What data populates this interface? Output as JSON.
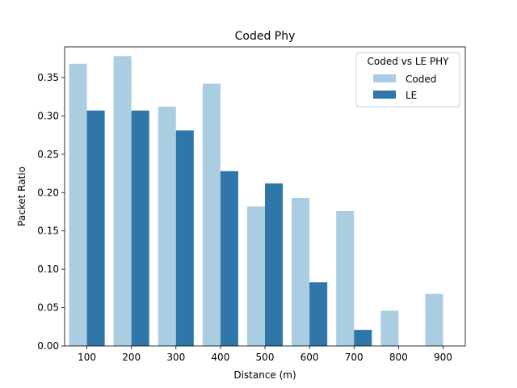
{
  "chart_data": {
    "type": "bar",
    "title": "Coded Phy",
    "xlabel": "Distance (m)",
    "ylabel": "Packet Ratio",
    "categories": [
      "100",
      "200",
      "300",
      "400",
      "500",
      "600",
      "700",
      "800",
      "900"
    ],
    "series": [
      {
        "name": "Coded",
        "color": "#abcde2",
        "values": [
          0.368,
          0.378,
          0.312,
          0.342,
          0.182,
          0.193,
          0.176,
          0.046,
          0.068
        ]
      },
      {
        "name": "LE",
        "color": "#2f76ab",
        "values": [
          0.307,
          0.307,
          0.281,
          0.228,
          0.212,
          0.083,
          0.021,
          null,
          null
        ]
      }
    ],
    "ylim": [
      0,
      0.39
    ],
    "yticks": [
      "0.00",
      "0.05",
      "0.10",
      "0.15",
      "0.20",
      "0.25",
      "0.30",
      "0.35"
    ],
    "grid": false,
    "legend": {
      "title": "Coded vs LE PHY",
      "placement": "top-right"
    }
  }
}
